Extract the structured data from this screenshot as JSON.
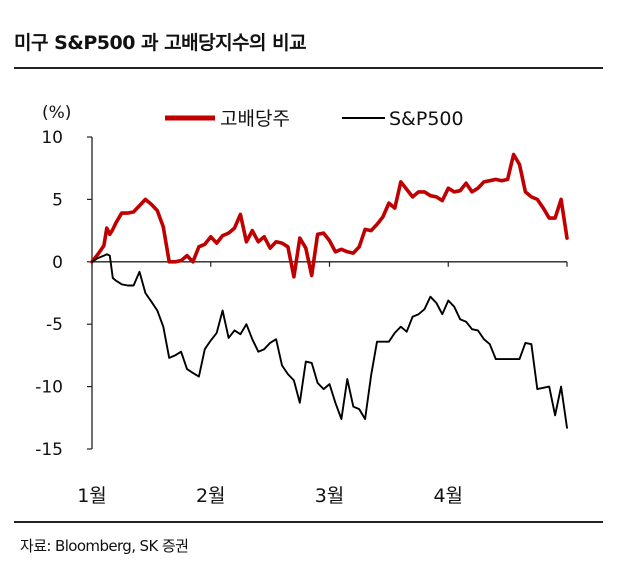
{
  "title": "미구 S&P500 과 고배당지수의 비교",
  "source": "자료: Bloomberg, SK 증권",
  "chart_data": {
    "type": "line",
    "y_unit": "(%)",
    "ylim": [
      -15,
      10
    ],
    "yticks": [
      10,
      5,
      0,
      -5,
      -10,
      -15
    ],
    "ytick_labels": [
      "10",
      "5",
      "0",
      "-5",
      "-10",
      "-15"
    ],
    "x_range": [
      0,
      80
    ],
    "xticks": [
      0,
      20,
      40,
      60
    ],
    "xtick_labels": [
      "1월",
      "2월",
      "3월",
      "4월"
    ],
    "legend_position": "top-center",
    "grid": false,
    "colors": {
      "high_dividend": "#c00000",
      "sp500": "#000000"
    },
    "series": [
      {
        "name": "고배당주",
        "color": "#c00000",
        "x": [
          0,
          1,
          2,
          2.5,
          3,
          3.5,
          4,
          5,
          6,
          7,
          8,
          9,
          10,
          11,
          12,
          13,
          14,
          15,
          16,
          17,
          18,
          19,
          20,
          21,
          22,
          23,
          24,
          25,
          26,
          27,
          28,
          29,
          30,
          31,
          32,
          33,
          34,
          35,
          36,
          37,
          38,
          39,
          40,
          41,
          42,
          43,
          44,
          45,
          46,
          47,
          48,
          49,
          50,
          51,
          52,
          53,
          54,
          55,
          56,
          57,
          58,
          59,
          60,
          61,
          62,
          63,
          64,
          65,
          66,
          67,
          68,
          69,
          70,
          71,
          72,
          73,
          74,
          75,
          76,
          77,
          78,
          79,
          80
        ],
        "values": [
          0,
          0.6,
          1.3,
          2.7,
          2.2,
          2.6,
          3.1,
          3.9,
          3.9,
          4.0,
          4.5,
          5.0,
          4.6,
          4.1,
          2.8,
          0.0,
          0.0,
          0.1,
          0.5,
          0.0,
          1.2,
          1.4,
          2.0,
          1.5,
          2.1,
          2.3,
          2.7,
          3.8,
          1.6,
          2.5,
          1.6,
          2.0,
          1.1,
          1.6,
          1.5,
          1.2,
          -1.2,
          1.9,
          1.1,
          -1.1,
          2.2,
          2.3,
          1.7,
          0.8,
          1.0,
          0.8,
          0.7,
          1.2,
          2.6,
          2.5,
          3.0,
          3.6,
          4.7,
          4.3,
          6.4,
          5.8,
          5.2,
          5.6,
          5.6,
          5.3,
          5.2,
          4.9,
          5.9,
          5.6,
          5.7,
          6.3,
          5.6,
          5.9,
          6.4,
          6.5,
          6.6,
          6.5,
          6.6,
          8.6,
          7.8,
          5.6,
          5.2,
          5.0,
          4.3,
          3.5,
          3.5,
          5.0,
          1.9
        ]
      },
      {
        "name": "S&P500",
        "color": "#000000",
        "x": [
          0,
          1,
          2,
          2.5,
          3,
          3.5,
          4,
          5,
          6,
          7,
          8,
          9,
          10,
          11,
          12,
          13,
          14,
          15,
          16,
          17,
          18,
          19,
          20,
          21,
          22,
          23,
          24,
          25,
          26,
          27,
          28,
          29,
          30,
          31,
          32,
          33,
          34,
          35,
          36,
          37,
          38,
          39,
          40,
          41,
          42,
          43,
          44,
          45,
          46,
          47,
          48,
          49,
          50,
          51,
          52,
          53,
          54,
          55,
          56,
          57,
          58,
          59,
          60,
          61,
          62,
          63,
          64,
          65,
          66,
          67,
          68,
          69,
          70,
          71,
          72,
          73,
          74,
          75,
          76,
          77,
          78,
          79,
          80
        ],
        "values": [
          0,
          0.3,
          0.5,
          0.6,
          0.5,
          -1.3,
          -1.5,
          -1.8,
          -1.9,
          -1.9,
          -0.8,
          -2.5,
          -3.2,
          -3.9,
          -5.2,
          -7.7,
          -7.5,
          -7.2,
          -8.6,
          -8.9,
          -9.2,
          -7.0,
          -6.3,
          -5.7,
          -3.9,
          -6.1,
          -5.5,
          -5.8,
          -5.0,
          -6.2,
          -7.2,
          -7.0,
          -6.5,
          -6.2,
          -8.3,
          -9.0,
          -9.5,
          -11.3,
          -8.0,
          -8.1,
          -9.7,
          -10.2,
          -9.8,
          -11.3,
          -12.6,
          -9.4,
          -11.6,
          -11.8,
          -12.6,
          -9.1,
          -6.4,
          -6.4,
          -6.4,
          -5.7,
          -5.2,
          -5.6,
          -4.4,
          -4.2,
          -3.8,
          -2.8,
          -3.3,
          -4.2,
          -3.1,
          -3.6,
          -4.6,
          -4.8,
          -5.4,
          -5.5,
          -6.2,
          -6.6,
          -7.8,
          -7.8,
          -7.8,
          -7.8,
          -7.8,
          -6.5,
          -6.6,
          -10.2,
          -10.1,
          -10.0,
          -12.3,
          -10.0,
          -13.3
        ]
      }
    ]
  }
}
